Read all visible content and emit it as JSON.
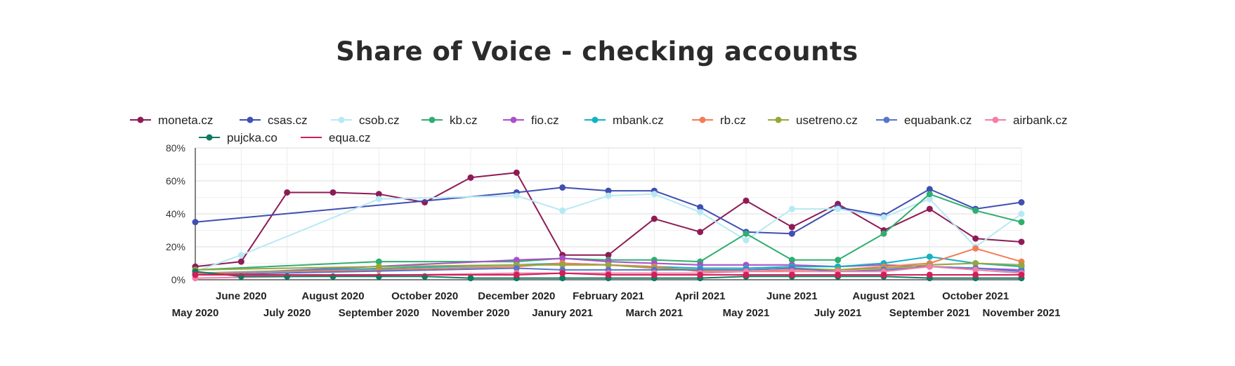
{
  "chart_data": {
    "type": "line",
    "title": "Share of Voice - checking accounts",
    "xlabel": "",
    "ylabel": "",
    "ylim": [
      0,
      80
    ],
    "y_ticks": [
      "0%",
      "20%",
      "40%",
      "60%",
      "80%"
    ],
    "grid": true,
    "legend_position": "top",
    "categories": [
      "May 2020",
      "June 2020",
      "July 2020",
      "August 2020",
      "September 2020",
      "October 2020",
      "November 2020",
      "December 2020",
      "Janury 2021",
      "February 2021",
      "March 2021",
      "April 2021",
      "May 2021",
      "June 2021",
      "July 2021",
      "August 2021",
      "September 2021",
      "October 2021",
      "November 2021"
    ],
    "series": [
      {
        "name": "moneta.cz",
        "color": "#8e1b55",
        "values": [
          8,
          11,
          53,
          53,
          52,
          47,
          62,
          65,
          15,
          15,
          37,
          29,
          48,
          32,
          46,
          30,
          43,
          25,
          23
        ]
      },
      {
        "name": "csas.cz",
        "color": "#3f4fb2",
        "values": [
          35,
          null,
          null,
          null,
          null,
          null,
          null,
          53,
          56,
          54,
          54,
          44,
          29,
          28,
          44,
          39,
          55,
          43,
          47
        ]
      },
      {
        "name": "csob.cz",
        "color": "#b7e9f4",
        "values": [
          5,
          15,
          null,
          null,
          49,
          null,
          null,
          51,
          42,
          51,
          52,
          41,
          24,
          43,
          43,
          38,
          49,
          20,
          40
        ]
      },
      {
        "name": "kb.cz",
        "color": "#2fae6f",
        "values": [
          6,
          null,
          null,
          null,
          11,
          null,
          null,
          11,
          13,
          12,
          12,
          11,
          28,
          12,
          12,
          28,
          52,
          42,
          35
        ]
      },
      {
        "name": "fio.cz",
        "color": "#ab4fc9",
        "values": [
          3,
          null,
          null,
          null,
          null,
          null,
          null,
          12,
          13,
          11,
          10,
          9,
          9,
          9,
          8,
          9,
          8,
          7,
          6
        ]
      },
      {
        "name": "mbank.cz",
        "color": "#13b2c2",
        "values": [
          4,
          null,
          null,
          null,
          null,
          null,
          null,
          9,
          10,
          9,
          8,
          7,
          7,
          8,
          8,
          10,
          14,
          10,
          8
        ]
      },
      {
        "name": "rb.cz",
        "color": "#f47b56",
        "values": [
          4,
          null,
          null,
          null,
          6,
          null,
          null,
          8,
          10,
          9,
          8,
          5,
          5,
          6,
          6,
          8,
          10,
          19,
          11
        ]
      },
      {
        "name": "usetreno.cz",
        "color": "#98a639",
        "values": [
          6,
          null,
          null,
          null,
          8,
          null,
          null,
          9,
          9,
          9,
          7,
          6,
          6,
          7,
          6,
          7,
          9,
          10,
          9
        ]
      },
      {
        "name": "equabank.cz",
        "color": "#5b74c9",
        "values": [
          3,
          null,
          null,
          null,
          null,
          null,
          null,
          7,
          6,
          6,
          6,
          6,
          6,
          7,
          5,
          6,
          8,
          7,
          5
        ]
      },
      {
        "name": "airbank.cz",
        "color": "#f47ea7",
        "values": [
          1,
          null,
          null,
          null,
          null,
          null,
          null,
          4,
          4,
          4,
          4,
          4,
          5,
          5,
          5,
          5,
          8,
          6,
          4
        ]
      },
      {
        "name": "pujcka.co",
        "color": "#0f7a62",
        "values": [
          5,
          2,
          2,
          2,
          2,
          2,
          1,
          1,
          1,
          1,
          1,
          1,
          2,
          2,
          2,
          2,
          1,
          1,
          1
        ]
      },
      {
        "name": "equa.cz",
        "color": "#d31e58",
        "values": [
          3,
          null,
          null,
          null,
          null,
          null,
          null,
          3,
          4,
          3,
          3,
          3,
          3,
          3,
          3,
          3,
          3,
          3,
          3
        ]
      }
    ]
  }
}
